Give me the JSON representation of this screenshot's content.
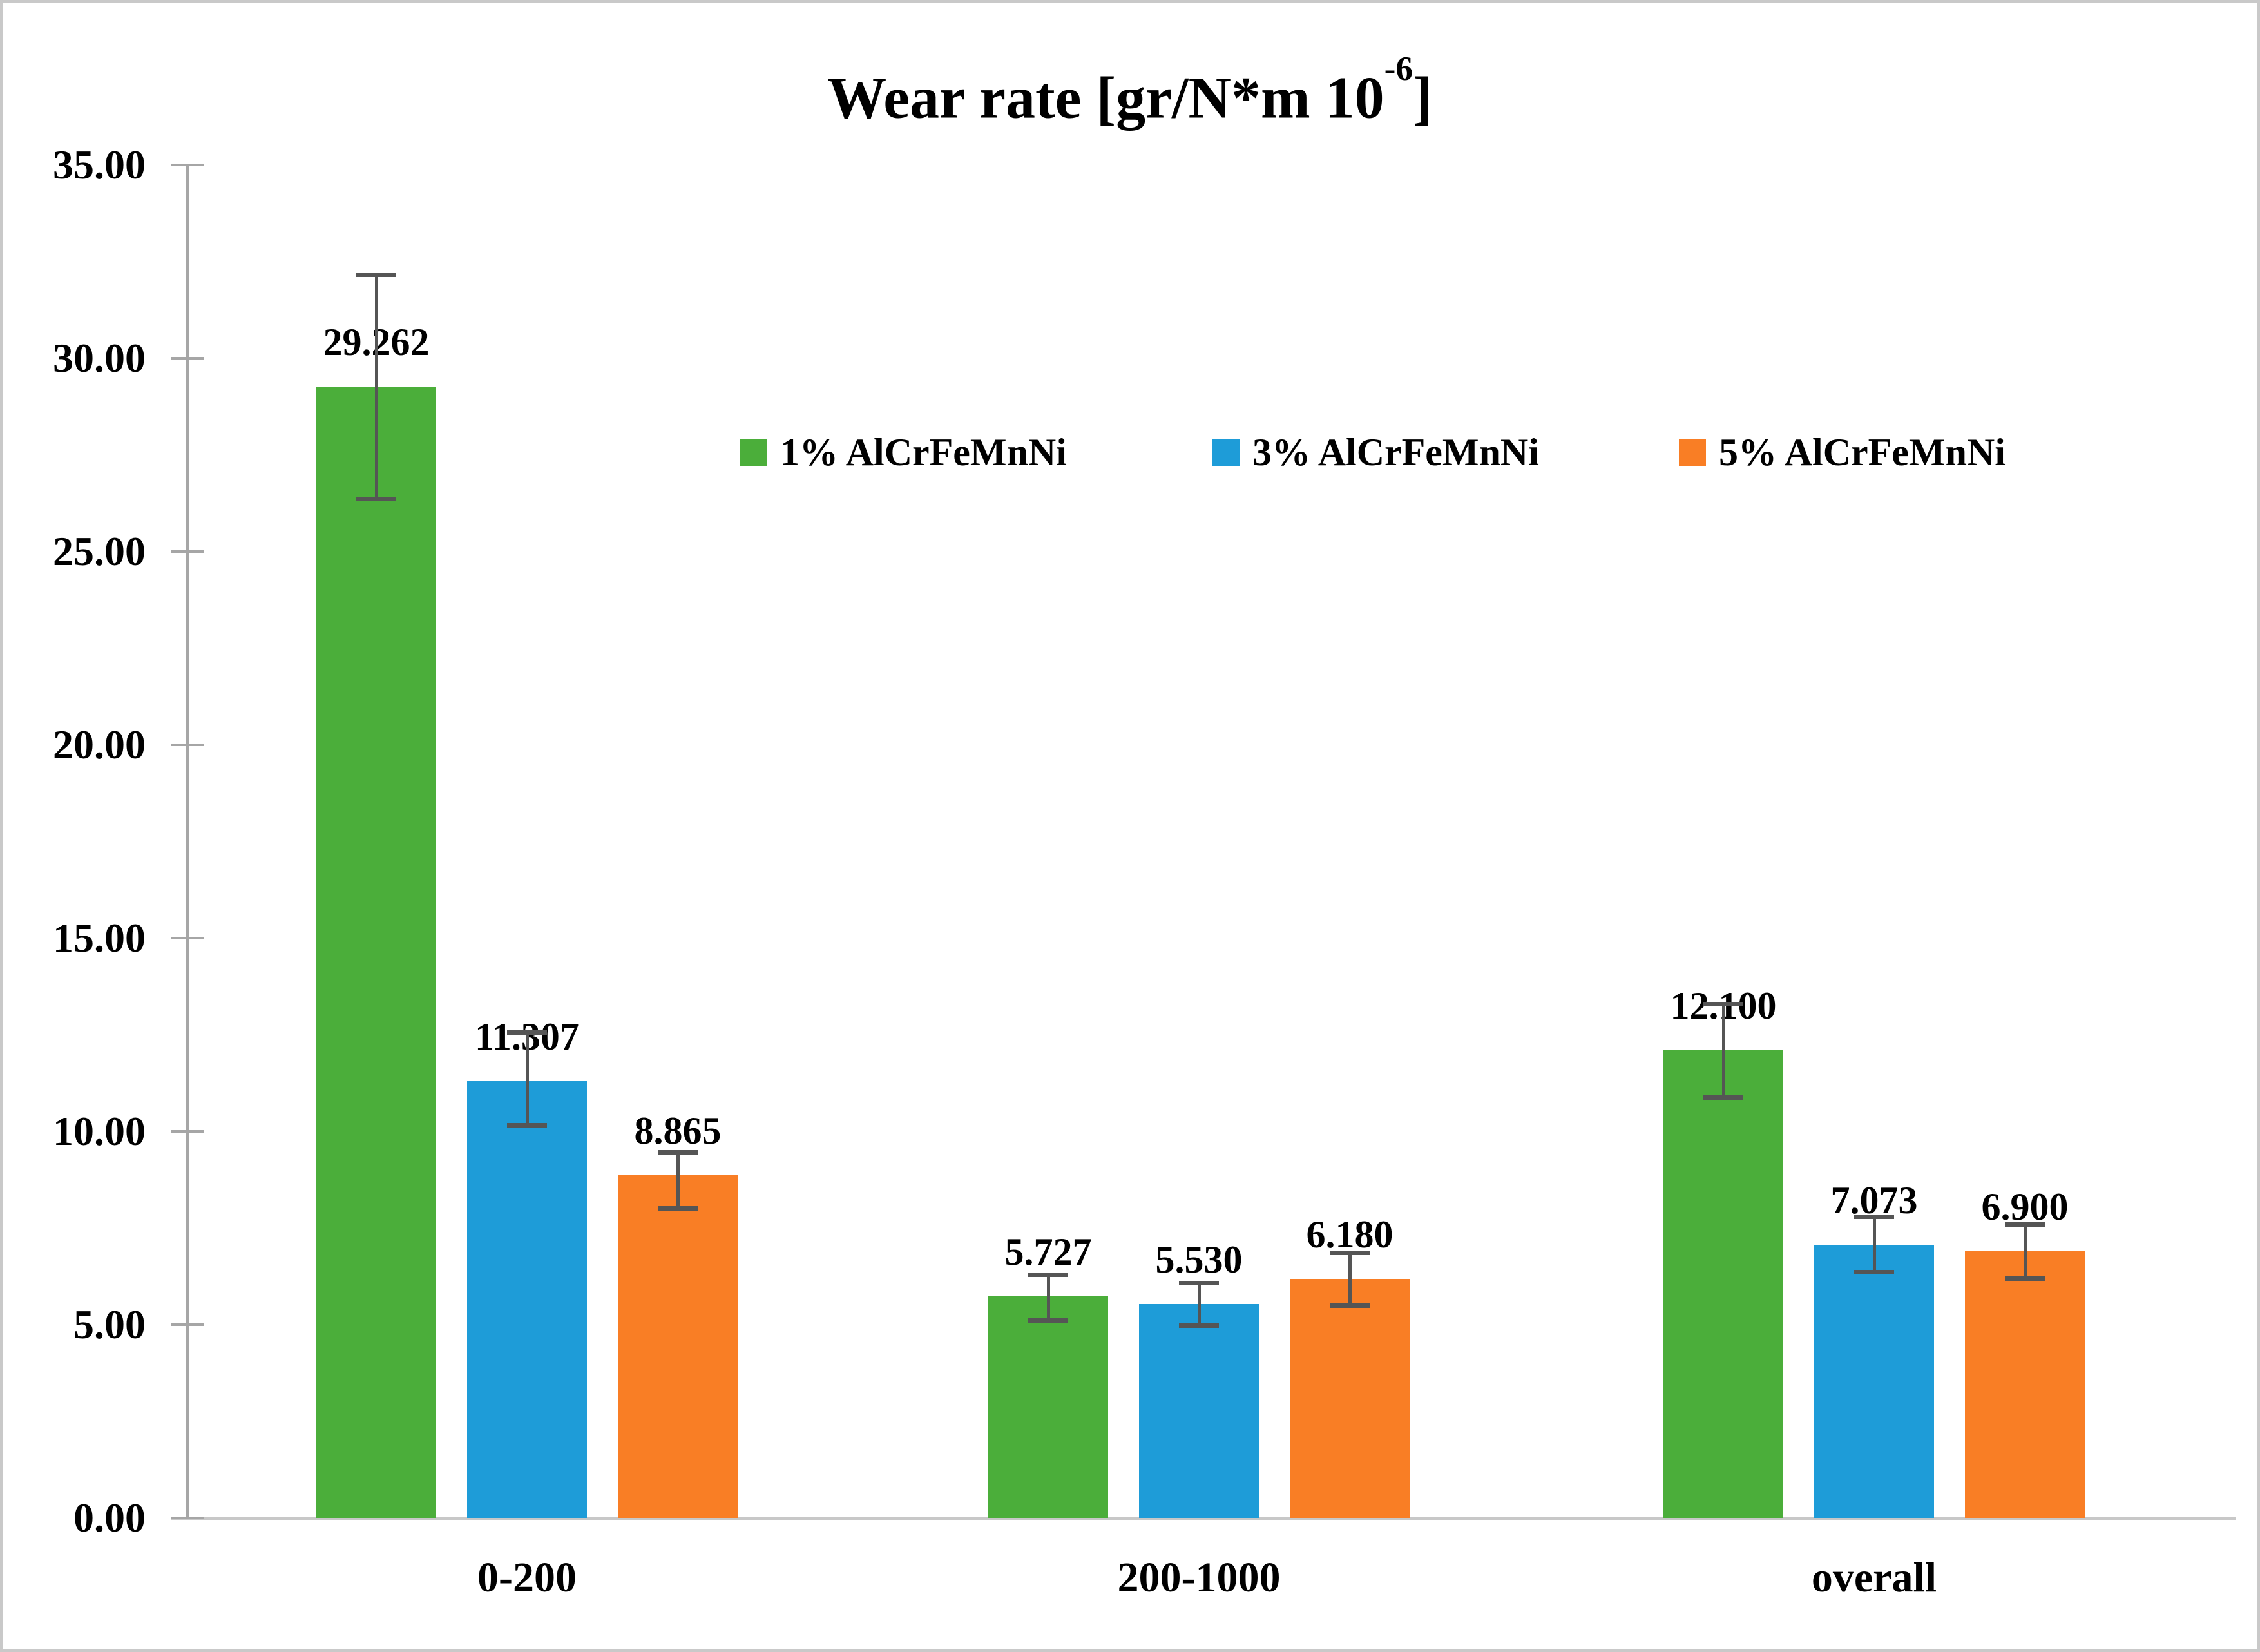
{
  "title": {
    "prefix": "Wear rate [gr/N*m 10",
    "superscript": "-6",
    "suffix": "]"
  },
  "legend": {
    "items": [
      {
        "label": "1% AlCrFeMnNi",
        "color": "#4bae3a"
      },
      {
        "label": "3% AlCrFeMnNi",
        "color": "#1e9cd8"
      },
      {
        "label": "5% AlCrFeMnNi",
        "color": "#f97e25"
      }
    ]
  },
  "chart_data": {
    "type": "bar",
    "title": "Wear rate [gr/N*m 10-6]",
    "categories": [
      "0-200",
      "200-1000",
      "overall"
    ],
    "series": [
      {
        "name": "1% AlCrFeMnNi",
        "color": "#4bae3a",
        "values": [
          29.262,
          5.727,
          12.1
        ],
        "labels": [
          "29.262",
          "5.727",
          "12.100"
        ],
        "error_plus": [
          2.9,
          0.58,
          1.2
        ],
        "error_minus": [
          2.9,
          0.61,
          1.22
        ]
      },
      {
        "name": "3% AlCrFeMnNi",
        "color": "#1e9cd8",
        "values": [
          11.307,
          5.53,
          7.073
        ],
        "labels": [
          "11.307",
          "5.530",
          "7.073"
        ],
        "error_plus": [
          1.26,
          0.55,
          0.72
        ],
        "error_minus": [
          1.14,
          0.55,
          0.7
        ]
      },
      {
        "name": "5% AlCrFeMnNi",
        "color": "#f97e25",
        "values": [
          8.865,
          6.18,
          6.9
        ],
        "labels": [
          "8.865",
          "6.180",
          "6.900"
        ],
        "error_plus": [
          0.6,
          0.68,
          0.7
        ],
        "error_minus": [
          0.85,
          0.68,
          0.7
        ]
      }
    ],
    "y_axis": {
      "min": 0,
      "max": 35,
      "step": 5,
      "tick_labels": [
        "0.00",
        "5.00",
        "10.00",
        "15.00",
        "20.00",
        "25.00",
        "30.00",
        "35.00"
      ]
    },
    "xlabel": "",
    "ylabel": "",
    "grid": false,
    "legend_position": "top-center-row",
    "error_bars": true
  },
  "colors": {
    "axis": "#a6a6a6",
    "baseline": "#c8c8c8",
    "error_bar": "#555555",
    "border": "#c9c9c9",
    "background": "#ffffff",
    "text": "#000000"
  }
}
